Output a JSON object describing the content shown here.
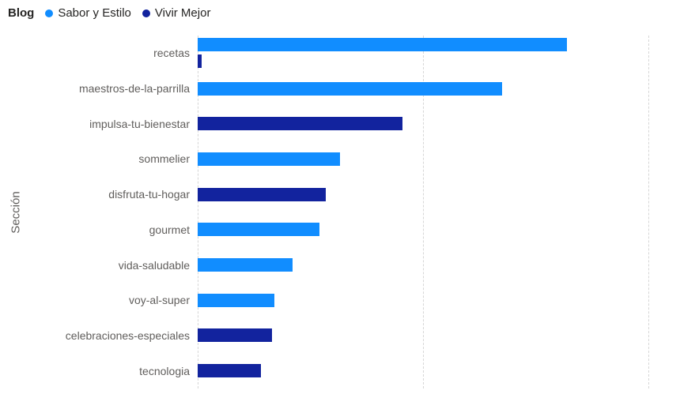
{
  "legend": {
    "title": "Blog",
    "items": [
      {
        "label": "Sabor y Estilo",
        "color": "#118DFF"
      },
      {
        "label": "Vivir Mejor",
        "color": "#12239E"
      }
    ]
  },
  "chart_data": {
    "type": "bar",
    "orientation": "horizontal",
    "title": "",
    "xlabel": "",
    "ylabel": "Sección",
    "legend_position": "top-left",
    "grid": "vertical dashed gridlines, no numeric axis labels visible",
    "gridline_positions_pct": [
      0,
      50,
      100
    ],
    "xlim": [
      0,
      100
    ],
    "value_note": "values estimated as percent of axis span (right gridline = 100)",
    "categories": [
      "recetas",
      "maestros-de-la-parrilla",
      "impulsa-tu-bienestar",
      "sommelier",
      "disfruta-tu-hogar",
      "gourmet",
      "vida-saludable",
      "voy-al-super",
      "celebraciones-especiales",
      "tecnologia"
    ],
    "series": [
      {
        "name": "Sabor y Estilo",
        "color": "#118DFF",
        "values": [
          82,
          67.5,
          0,
          31.5,
          0,
          27,
          21,
          17,
          0,
          0
        ]
      },
      {
        "name": "Vivir Mejor",
        "color": "#12239E",
        "values": [
          0.8,
          0,
          45.5,
          0,
          28.5,
          0,
          0,
          0,
          16.5,
          14
        ]
      }
    ]
  }
}
